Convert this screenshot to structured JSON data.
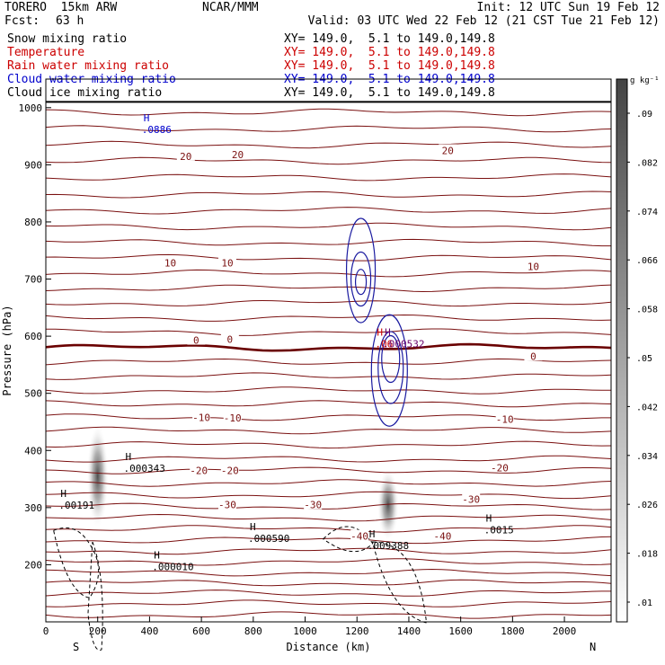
{
  "header": {
    "model": "TORERO  15km ARW",
    "center": "NCAR/MMM",
    "init": "Init: 12 UTC Sun 19 Feb 12",
    "fcst_label": "Fcst:",
    "fcst_value": "63 h",
    "valid": "Valid: 03 UTC Wed 22 Feb 12 (21 CST Tue 21 Feb 12)",
    "section": "XY= 149.0,  5.1 to 149.0,149.8"
  },
  "fields": [
    {
      "label": "Snow mixing ratio",
      "color": "#000000",
      "section_color": "#000000"
    },
    {
      "label": "Temperature",
      "color": "#cc0000",
      "section_color": "#cc0000"
    },
    {
      "label": "Rain water mixing ratio",
      "color": "#cc0000",
      "section_color": "#cc0000"
    },
    {
      "label": "Cloud water mixing ratio",
      "color": "#0000cc",
      "section_color": "#0000cc"
    },
    {
      "label": "Cloud ice mixing ratio",
      "color": "#000000",
      "section_color": "#000000"
    }
  ],
  "colors": {
    "temperature": "#7a1010",
    "zero_isotherm": "#6a0000",
    "cloud_water": "#1a1aa0",
    "snow": "#000000",
    "text_red": "#cc0000",
    "text_blue": "#0000cc"
  },
  "chart_data": {
    "type": "cross-section",
    "title": "Snow mixing ratio, Temperature, Rain water mixing ratio, Cloud water mixing ratio, Cloud ice mixing ratio",
    "xlabel": "Distance (km)",
    "ylabel": "Pressure (hPa)",
    "xlim": [
      0,
      2180
    ],
    "ylim": [
      1050,
      100
    ],
    "x_ticks": [
      0,
      200,
      400,
      600,
      800,
      1000,
      1200,
      1400,
      1600,
      1800,
      2000
    ],
    "y_ticks": [
      200,
      300,
      400,
      500,
      600,
      700,
      800,
      900,
      1000
    ],
    "end_labels": {
      "left": "S",
      "right": "N"
    },
    "colorbar": {
      "units": "g kg⁻¹",
      "levels": [
        ".01",
        ".018",
        ".026",
        ".034",
        ".042",
        ".05",
        ".058",
        ".066",
        ".074",
        ".082",
        ".09"
      ]
    },
    "isotherms": [
      {
        "value": "-40",
        "labels": [
          {
            "x": 1210,
            "p": 250
          },
          {
            "x": 1530,
            "p": 250
          }
        ]
      },
      {
        "value": "-30",
        "labels": [
          {
            "x": 700,
            "p": 305
          },
          {
            "x": 1030,
            "p": 305
          },
          {
            "x": 1640,
            "p": 315
          }
        ]
      },
      {
        "value": "-20",
        "labels": [
          {
            "x": 590,
            "p": 365
          },
          {
            "x": 710,
            "p": 365
          },
          {
            "x": 1750,
            "p": 370
          }
        ]
      },
      {
        "value": "-10",
        "labels": [
          {
            "x": 600,
            "p": 458
          },
          {
            "x": 720,
            "p": 457
          },
          {
            "x": 1770,
            "p": 455
          }
        ]
      },
      {
        "value": "0",
        "labels": [
          {
            "x": 580,
            "p": 593
          },
          {
            "x": 710,
            "p": 595
          },
          {
            "x": 1880,
            "p": 565
          }
        ]
      },
      {
        "value": "10",
        "labels": [
          {
            "x": 480,
            "p": 728
          },
          {
            "x": 700,
            "p": 728
          },
          {
            "x": 1880,
            "p": 722
          }
        ]
      },
      {
        "value": "20",
        "labels": [
          {
            "x": 540,
            "p": 915
          },
          {
            "x": 740,
            "p": 918
          },
          {
            "x": 1550,
            "p": 925
          }
        ]
      }
    ],
    "maxima": [
      {
        "x": 410,
        "p": 195,
        "value": ".000010",
        "field": "snow"
      },
      {
        "x": 780,
        "p": 245,
        "value": ".000590",
        "field": "snow"
      },
      {
        "x": 1240,
        "p": 232,
        "value": ".009388",
        "field": "snow"
      },
      {
        "x": 1690,
        "p": 260,
        "value": ".0015",
        "field": "snow"
      },
      {
        "x": 50,
        "p": 303,
        "value": ".00191",
        "field": "snow"
      },
      {
        "x": 300,
        "p": 367,
        "value": ".000343",
        "field": "snow"
      },
      {
        "x": 1270,
        "p": 585,
        "value": ".06",
        "field": "rain"
      },
      {
        "x": 1300,
        "p": 585,
        "value": ".000532",
        "field": "cloud_ice"
      },
      {
        "x": 370,
        "p": 960,
        "value": ".0886",
        "field": "cloud_water"
      }
    ],
    "snow_maxima_locations_km": [
      200,
      1320
    ]
  }
}
